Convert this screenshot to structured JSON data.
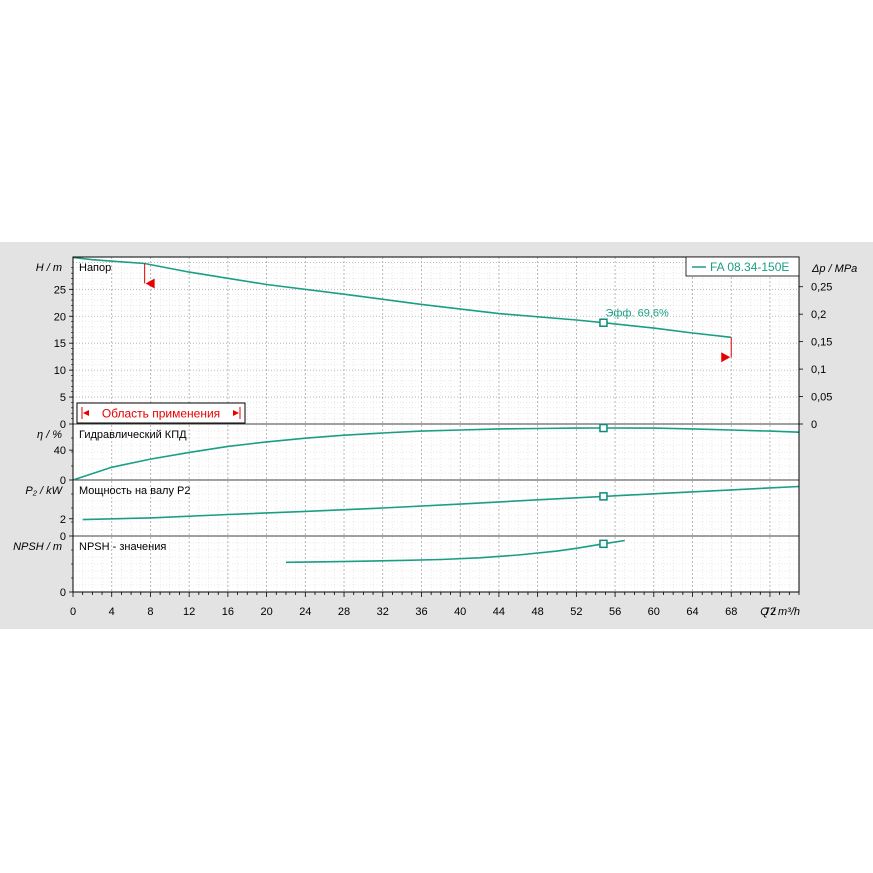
{
  "chart_data": {
    "type": "line",
    "legend": {
      "label": "FA 08.34-150E",
      "placement": "top-right",
      "color": "#1a9e85"
    },
    "x_axis": {
      "label": "Q / m³/h",
      "range": [
        0,
        75
      ],
      "ticks": [
        0,
        4,
        8,
        12,
        16,
        20,
        24,
        28,
        32,
        36,
        40,
        44,
        48,
        52,
        56,
        60,
        64,
        68,
        72
      ],
      "grid": true
    },
    "panels": [
      {
        "key": "head",
        "title": "Напор",
        "ylabel": "H / m",
        "ylim": [
          0,
          31
        ],
        "yticks": [
          0,
          5,
          10,
          15,
          20,
          25
        ],
        "right_axis": {
          "label": "Δp / MPa",
          "ticks": [
            "0",
            "0,05",
            "0,1",
            "0,15",
            "0,2",
            "0,25"
          ]
        },
        "series": [
          {
            "x": [
              0,
              2,
              7.4,
              12,
              20,
              28,
              36,
              44,
              52,
              54.8,
              60,
              64,
              68
            ],
            "y": [
              30.9,
              30.5,
              29.8,
              28.2,
              25.9,
              24.1,
              22.2,
              20.5,
              19.3,
              18.8,
              17.8,
              16.9,
              16.1
            ]
          }
        ],
        "duty_point": {
          "x": 54.8,
          "y": 18.8,
          "label": "Эфф.  69,6%"
        },
        "range_limits": {
          "min": 7.4,
          "max": 68
        },
        "range_box_label": "Область применения"
      },
      {
        "key": "efficiency",
        "title": "Гидравлический КПД",
        "ylabel": "η / %",
        "ylim": [
          0,
          75
        ],
        "yticks": [
          0,
          40
        ],
        "series": [
          {
            "x": [
              0,
              4,
              8,
              12,
              16,
              20,
              24,
              28,
              32,
              36,
              40,
              44,
              48,
              52,
              54.8,
              60,
              64,
              68,
              72,
              75
            ],
            "y": [
              0,
              17,
              28,
              37,
              45,
              51,
              56,
              60,
              63,
              65.5,
              67,
              68.5,
              69,
              69.5,
              69.6,
              69.5,
              68.5,
              67,
              65.5,
              64
            ]
          }
        ],
        "duty_point": {
          "x": 54.8,
          "y": 69.6
        }
      },
      {
        "key": "power",
        "title": "Мощность на валу P2",
        "ylabel": "P₂ / kW",
        "ylim": [
          0,
          6.5
        ],
        "yticks": [
          0,
          2
        ],
        "series": [
          {
            "x": [
              1,
              8,
              16,
              24,
              32,
              40,
              48,
              54.8,
              60,
              68,
              75
            ],
            "y": [
              1.9,
              2.1,
              2.5,
              2.85,
              3.25,
              3.7,
              4.2,
              4.6,
              4.9,
              5.35,
              5.75
            ]
          }
        ],
        "duty_point": {
          "x": 54.8,
          "y": 4.6
        }
      },
      {
        "key": "npsh",
        "title": "NPSH - значения",
        "ylabel": "NPSH / m",
        "ylim": [
          0,
          10
        ],
        "yticks": [
          0
        ],
        "series": [
          {
            "x": [
              22,
              26,
              30,
              34,
              38,
              42,
              46,
              50,
              52,
              54.8,
              57
            ],
            "y": [
              5.3,
              5.4,
              5.5,
              5.65,
              5.8,
              6.1,
              6.6,
              7.3,
              7.8,
              8.6,
              9.2
            ]
          }
        ],
        "duty_point": {
          "x": 54.8,
          "y": 8.6
        }
      }
    ]
  },
  "colors": {
    "curve": "#1a9e85",
    "marker": "#0f8c77",
    "limits": "#e60000",
    "grid": "#a6a6a6",
    "panel_bg": "#e3e3e3"
  }
}
